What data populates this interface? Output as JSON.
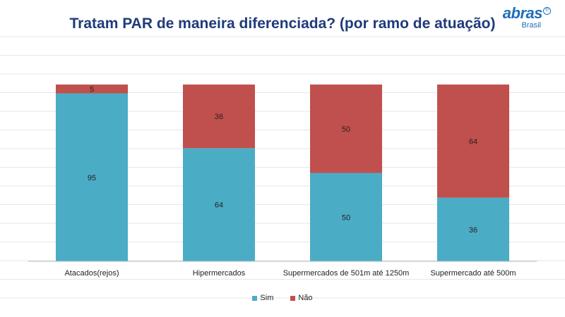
{
  "chart_data": {
    "type": "bar",
    "stacked": true,
    "title": "Tratam PAR de maneira diferenciada? (por ramo de atuação)",
    "categories": [
      "Atacados(rejos)",
      "Hipermercados",
      "Supermercados de 501m até 1250m",
      "Supermercado até 500m"
    ],
    "series": [
      {
        "name": "Sim",
        "values": [
          95,
          64,
          50,
          36
        ],
        "color": "#4bacc6"
      },
      {
        "name": "Não",
        "values": [
          5,
          36,
          50,
          64
        ],
        "color": "#c0504d"
      }
    ],
    "ylim": [
      0,
      100
    ],
    "grid": true,
    "legend": "bottom"
  },
  "logo": {
    "text": "abras",
    "sub": "Brasil",
    "reg": "®"
  }
}
